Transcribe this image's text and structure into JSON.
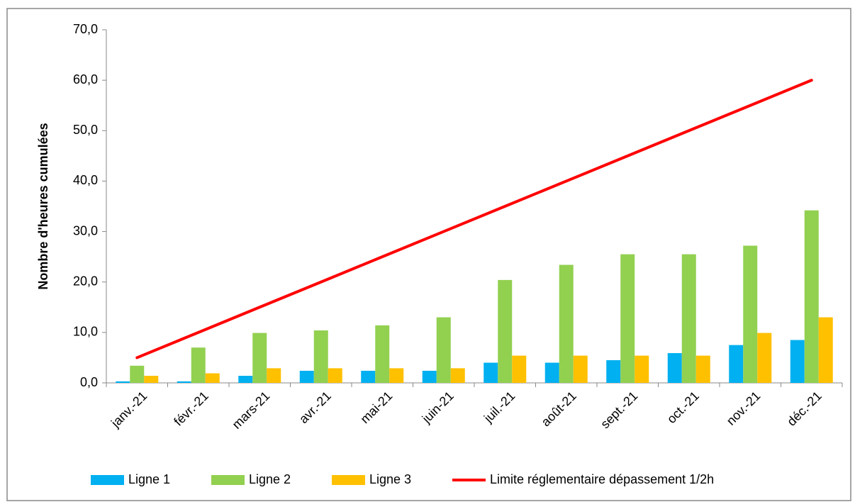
{
  "chart_data": {
    "type": "bar",
    "y_label": "Nombre d'heures cumulées",
    "categories": [
      "janv.-21",
      "févr.-21",
      "mars-21",
      "avr.-21",
      "mai-21",
      "juin-21",
      "juil.-21",
      "août-21",
      "sept.-21",
      "oct.-21",
      "nov.-21",
      "déc.-21"
    ],
    "series": [
      {
        "name": "Ligne 1",
        "type": "bar",
        "color": "#00b0f0",
        "values": [
          0.3,
          0.3,
          1.4,
          2.4,
          2.4,
          2.4,
          4.0,
          4.0,
          4.5,
          5.9,
          7.5,
          8.5
        ]
      },
      {
        "name": "Ligne 2",
        "type": "bar",
        "color": "#92d050",
        "values": [
          3.4,
          7.0,
          9.9,
          10.4,
          11.4,
          13.0,
          20.4,
          23.4,
          25.5,
          25.5,
          27.2,
          34.2
        ]
      },
      {
        "name": "Ligne 3",
        "type": "bar",
        "color": "#ffc000",
        "values": [
          1.4,
          1.9,
          2.9,
          2.9,
          2.9,
          2.9,
          5.4,
          5.4,
          5.4,
          5.4,
          9.9,
          13.0
        ]
      },
      {
        "name": "Limite réglementaire dépassement 1/2h",
        "type": "line",
        "color": "#ff0000",
        "values": [
          5,
          10,
          15,
          20,
          25,
          30,
          35,
          40,
          45,
          50,
          55,
          60
        ]
      }
    ],
    "ylim": [
      0,
      70
    ],
    "yticks": [
      {
        "value": 0,
        "label": "0,0"
      },
      {
        "value": 10,
        "label": "10,0"
      },
      {
        "value": 20,
        "label": "20,0"
      },
      {
        "value": 30,
        "label": "30,0"
      },
      {
        "value": 40,
        "label": "40,0"
      },
      {
        "value": 50,
        "label": "50,0"
      },
      {
        "value": 60,
        "label": "60,0"
      },
      {
        "value": 70,
        "label": "70,0"
      }
    ],
    "grid": false,
    "legend": "bottom"
  }
}
